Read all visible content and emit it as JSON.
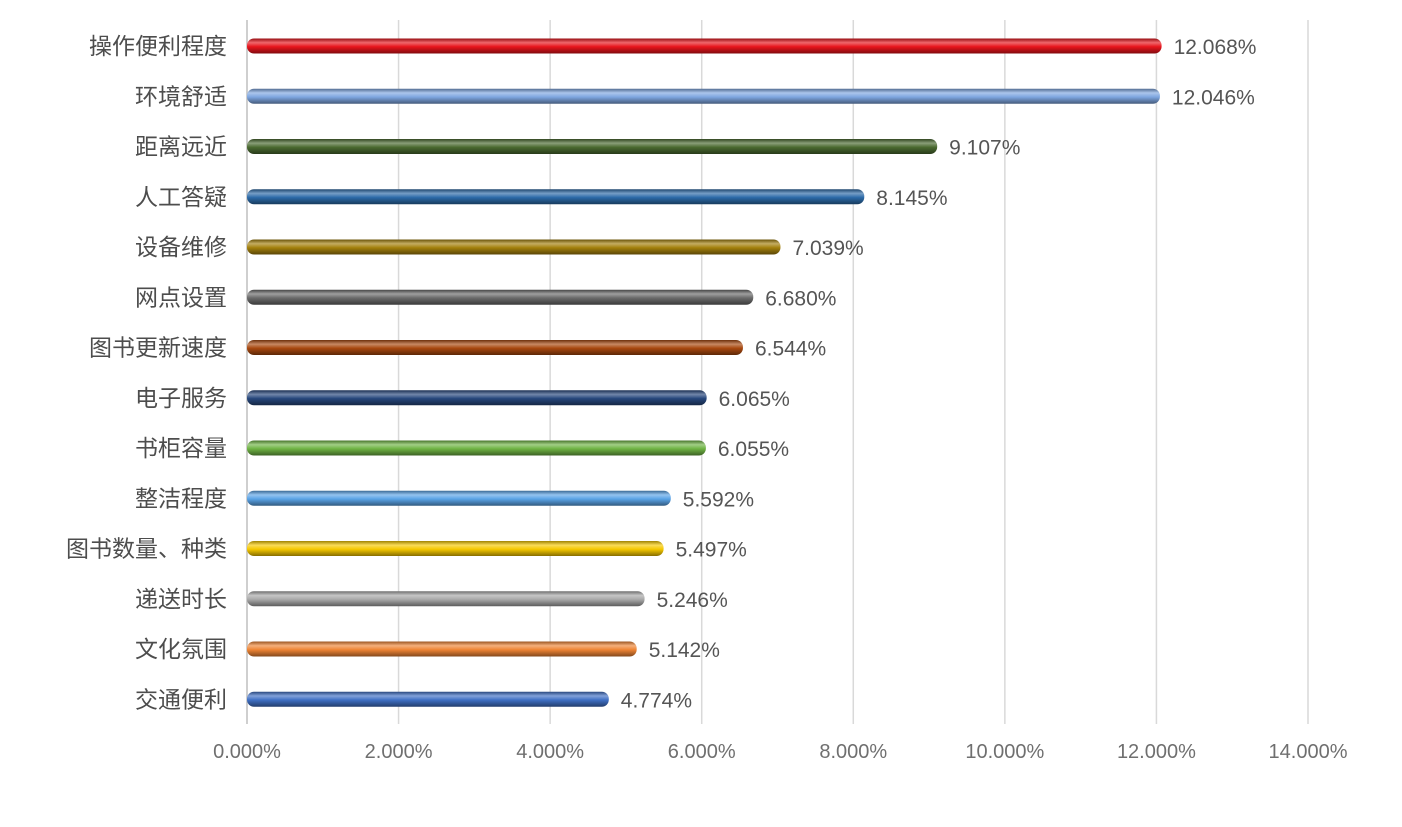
{
  "chart_data": {
    "type": "bar",
    "orientation": "horizontal",
    "categories": [
      "操作便利程度",
      "环境舒适",
      "距离远近",
      "人工答疑",
      "设备维修",
      "网点设置",
      "图书更新速度",
      "电子服务",
      "书柜容量",
      "整洁程度",
      "图书数量、种类",
      "递送时长",
      "文化氛围",
      "交通便利"
    ],
    "values": [
      12.068,
      12.046,
      9.107,
      8.145,
      7.039,
      6.68,
      6.544,
      6.065,
      6.055,
      5.592,
      5.497,
      5.246,
      5.142,
      4.774
    ],
    "value_labels": [
      "12.068%",
      "12.046%",
      "9.107%",
      "8.145%",
      "7.039%",
      "6.680%",
      "6.544%",
      "6.065%",
      "6.055%",
      "5.592%",
      "5.497%",
      "5.246%",
      "5.142%",
      "4.774%"
    ],
    "colors": [
      "#e8141c",
      "#7ea6e0",
      "#4a6a30",
      "#2c6aa8",
      "#a3800c",
      "#6a6a6a",
      "#a8480f",
      "#26477c",
      "#6fb344",
      "#5aa3e6",
      "#f5c800",
      "#a8a8a8",
      "#ee8434",
      "#3f6fc4"
    ],
    "xlim": [
      0,
      14
    ],
    "xticks": [
      0,
      2,
      4,
      6,
      8,
      10,
      12,
      14
    ],
    "xtick_labels": [
      "0.000%",
      "2.000%",
      "4.000%",
      "6.000%",
      "8.000%",
      "10.000%",
      "12.000%",
      "14.000%"
    ],
    "grid": true,
    "title": "",
    "xlabel": "",
    "ylabel": ""
  }
}
